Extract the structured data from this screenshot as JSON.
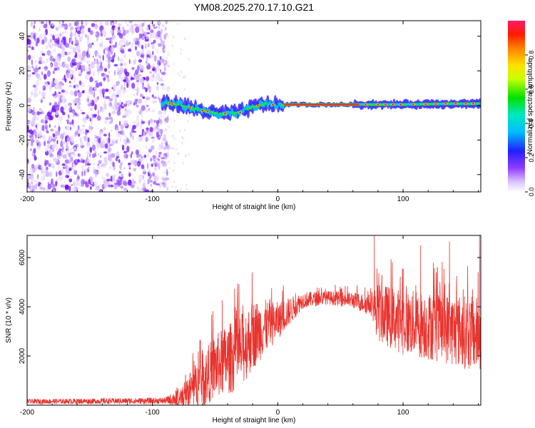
{
  "title": "YM08.2025.270.17.10.G21",
  "chart_data": [
    {
      "type": "heatmap",
      "xlabel": "Height of straight line (km)",
      "ylabel": "Frequency (Hz)",
      "xlim": [
        -200,
        162
      ],
      "ylim": [
        -50,
        49
      ],
      "xticks": [
        -200,
        -100,
        0,
        100
      ],
      "xtick_labels": [
        "-200",
        "-100",
        "0",
        "100"
      ],
      "yticks": [
        -40,
        -20,
        0,
        20,
        40
      ],
      "ytick_labels": [
        "-40",
        "-20",
        "0",
        "20",
        "40"
      ],
      "noise_region_x": [
        -200,
        -87
      ],
      "signal_trace": [
        {
          "x": -92,
          "f": 1.5
        },
        {
          "x": -80,
          "f": 0.5
        },
        {
          "x": -60,
          "f": -3
        },
        {
          "x": -45,
          "f": -5
        },
        {
          "x": -30,
          "f": -4
        },
        {
          "x": -20,
          "f": -1
        },
        {
          "x": -10,
          "f": 1
        },
        {
          "x": 0,
          "f": 0
        },
        {
          "x": 10,
          "f": 0.5
        },
        {
          "x": 60,
          "f": 0.5
        },
        {
          "x": 100,
          "f": 0.5
        },
        {
          "x": 140,
          "f": 1
        },
        {
          "x": 162,
          "f": 1
        }
      ],
      "colorbar": {
        "label": "Normalized spectral amplitude",
        "ticks": [
          0.0,
          0.2,
          0.4,
          0.6,
          0.8
        ],
        "tick_labels": [
          "0.0",
          "0.2",
          "0.4",
          "0.6",
          "0.8"
        ],
        "range": [
          0,
          1
        ]
      }
    },
    {
      "type": "line",
      "xlabel": "Height of straight line (km)",
      "ylabel": "SNR (10 * v/v)",
      "xlim": [
        -200,
        162
      ],
      "ylim": [
        0,
        6900
      ],
      "xticks": [
        -200,
        -100,
        0,
        100
      ],
      "xtick_labels": [
        "-200",
        "-100",
        "0",
        "100"
      ],
      "yticks": [
        2000,
        4000,
        6000
      ],
      "ytick_labels": [
        "2000",
        "4000",
        "6000"
      ],
      "color": "#e8332e",
      "envelope": [
        {
          "x": -200,
          "mean": 150,
          "noise": 100
        },
        {
          "x": -90,
          "mean": 180,
          "noise": 130
        },
        {
          "x": -80,
          "mean": 300,
          "noise": 350
        },
        {
          "x": -70,
          "mean": 700,
          "noise": 700
        },
        {
          "x": -60,
          "mean": 1100,
          "noise": 1000
        },
        {
          "x": -50,
          "mean": 1700,
          "noise": 1200
        },
        {
          "x": -40,
          "mean": 2000,
          "noise": 1300
        },
        {
          "x": -30,
          "mean": 2300,
          "noise": 1400
        },
        {
          "x": -20,
          "mean": 3000,
          "noise": 1300
        },
        {
          "x": -10,
          "mean": 3300,
          "noise": 1000
        },
        {
          "x": 0,
          "mean": 3500,
          "noise": 700
        },
        {
          "x": 10,
          "mean": 3900,
          "noise": 500
        },
        {
          "x": 20,
          "mean": 4300,
          "noise": 300
        },
        {
          "x": 40,
          "mean": 4400,
          "noise": 250
        },
        {
          "x": 60,
          "mean": 4300,
          "noise": 300
        },
        {
          "x": 75,
          "mean": 4100,
          "noise": 400
        },
        {
          "x": 80,
          "mean": 3900,
          "noise": 1100
        },
        {
          "x": 100,
          "mean": 3500,
          "noise": 1200
        },
        {
          "x": 130,
          "mean": 3300,
          "noise": 1300
        },
        {
          "x": 162,
          "mean": 3000,
          "noise": 1400
        }
      ],
      "peaks": [
        {
          "x": 77,
          "y": 6900
        },
        {
          "x": 114,
          "y": 6500
        },
        {
          "x": 137,
          "y": 6650
        },
        {
          "x": 161,
          "y": 6900
        }
      ]
    }
  ]
}
